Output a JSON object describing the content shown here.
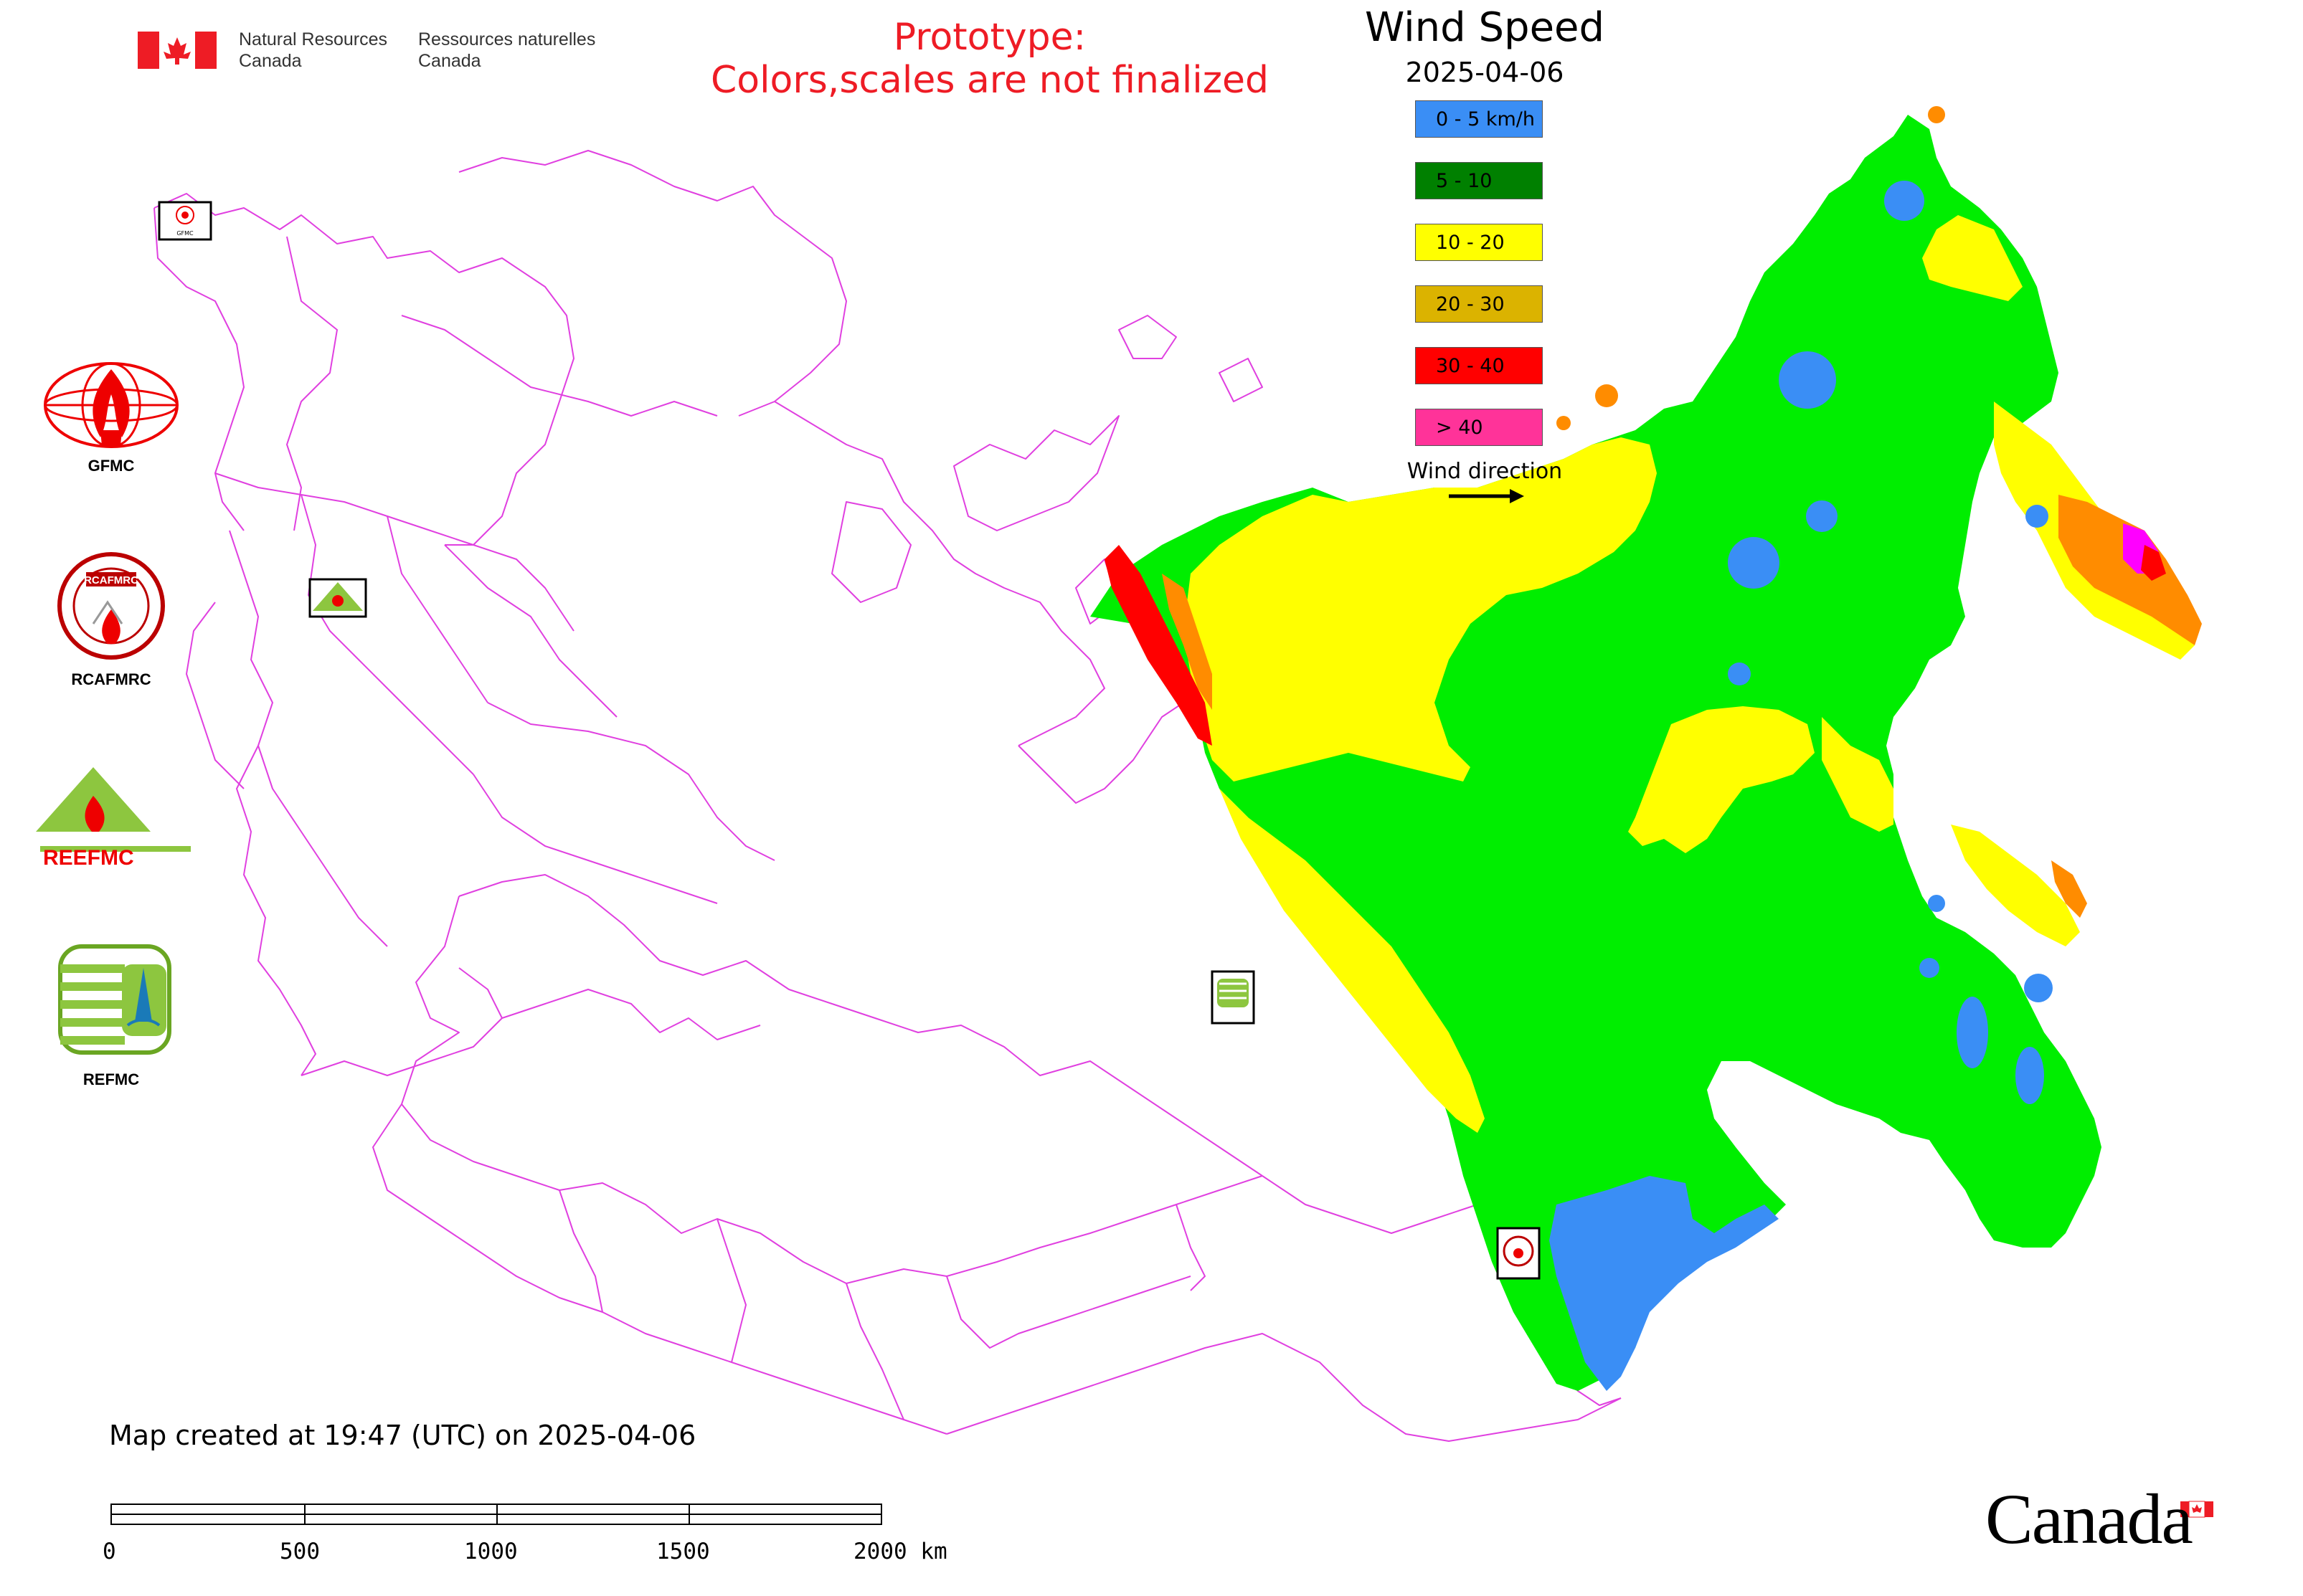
{
  "header": {
    "agency_en": [
      "Natural Resources",
      "Canada"
    ],
    "agency_fr": [
      "Ressources naturelles",
      "Canada"
    ],
    "prototype_lines": [
      "Prototype:",
      "Colors,scales are not finalized"
    ]
  },
  "legend": {
    "title": "Wind Speed",
    "date": "2025-04-06",
    "items": [
      {
        "label": "0 - 5 km/h",
        "color": "#3a8ef5"
      },
      {
        "label": "5 - 10",
        "color": "#008000"
      },
      {
        "label": "10 - 20",
        "color": "#ffff00"
      },
      {
        "label": "20 - 30",
        "color": "#dbb300"
      },
      {
        "label": "30 - 40",
        "color": "#ff0000"
      },
      {
        "label": "> 40",
        "color": "#ff3399"
      }
    ],
    "wind_direction_label": "Wind direction"
  },
  "logos": {
    "gfmc": "GFMC",
    "rcafmrc": "RCAFMRC",
    "reefmc": "REEFMC",
    "refmc": "REFMC",
    "rcafmrc_ring_text": "RCAFMRC",
    "reefmc_word": "REEFMC"
  },
  "footer": {
    "created": "Map created at 19:47 (UTC) on 2025-04-06",
    "scale_labels": [
      "0",
      "500",
      "1000",
      "1500",
      "2000 km"
    ],
    "canada_wordmark": "Canada"
  },
  "colors": {
    "boundary": "#e040e0",
    "green": "#00ee00",
    "yellow": "#ffff00",
    "blue": "#3a8ef5",
    "orange": "#ff8c00",
    "red": "#ff0000",
    "magenta": "#ff00ff",
    "flag_red": "#ee1c25"
  }
}
